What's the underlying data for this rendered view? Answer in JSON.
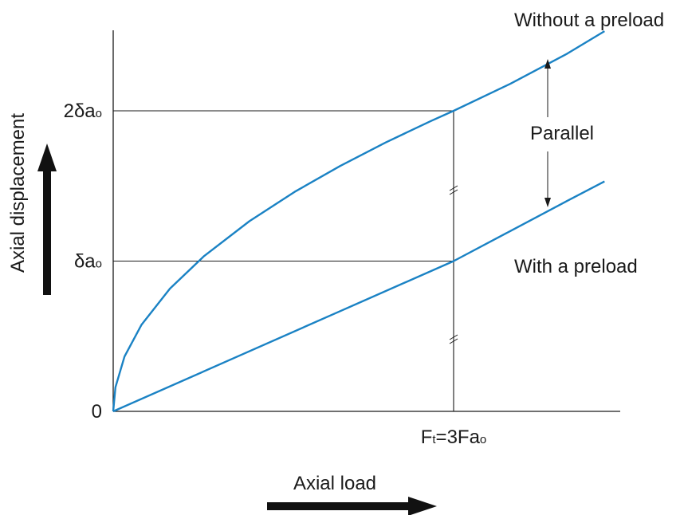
{
  "chart_data": {
    "type": "line",
    "xlabel": "Axial load",
    "ylabel": "Axial displacement",
    "x_tick_label": {
      "main": "F",
      "sub1": "t",
      "mid": "=3Fa",
      "sub2": "o",
      "value": 3
    },
    "y_tick_labels": [
      {
        "text": "0",
        "value": 0
      },
      {
        "text": "δa",
        "sub": "o",
        "value": 1
      },
      {
        "text": "2δa",
        "sub": "o",
        "value": 2
      }
    ],
    "xlim": [
      0,
      4.4
    ],
    "ylim": [
      0,
      2.57
    ],
    "series": [
      {
        "name": "Without a preload",
        "x": [
          0,
          0.02,
          0.1,
          0.25,
          0.5,
          0.8,
          1.2,
          1.6,
          2.0,
          2.4,
          2.8,
          3.0,
          3.5,
          4.0,
          4.33
        ],
        "y": [
          0,
          0.16,
          0.365,
          0.577,
          0.817,
          1.033,
          1.265,
          1.461,
          1.633,
          1.789,
          1.932,
          2.0,
          2.18,
          2.38,
          2.53
        ]
      },
      {
        "name": "With a preload",
        "x": [
          0,
          1.0,
          2.0,
          3.0,
          3.5,
          4.0,
          4.33
        ],
        "y": [
          0,
          0.333,
          0.667,
          1.0,
          1.2,
          1.4,
          1.53
        ]
      }
    ],
    "annotation": "Parallel",
    "line_color": "#1a82c4",
    "axis_color": "#1a1a1a"
  }
}
